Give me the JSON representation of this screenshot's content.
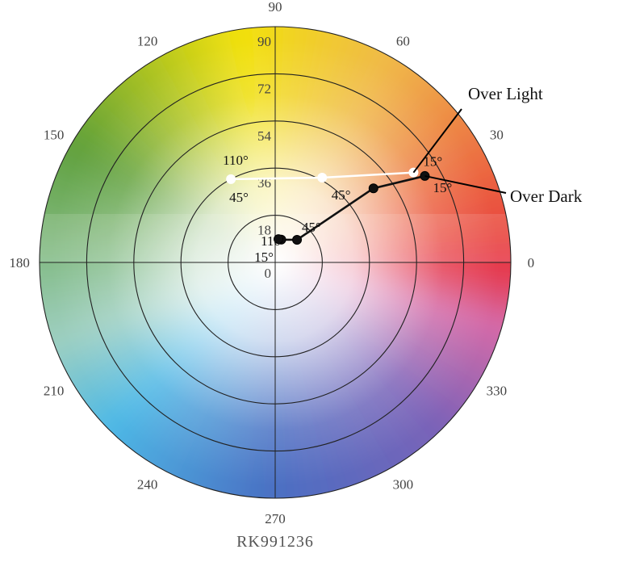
{
  "chart_data": {
    "type": "scatter",
    "coordinate_system": "polar",
    "angle_ticks": [
      "0",
      "30",
      "60",
      "90",
      "120",
      "150",
      "180",
      "210",
      "240",
      "270",
      "300",
      "330"
    ],
    "radial_ticks": [
      "0",
      "18",
      "36",
      "54",
      "72",
      "90"
    ],
    "radial_range": [
      0,
      90
    ],
    "grid": true,
    "background": "color wheel (hue by angle, saturation by radius)",
    "series": [
      {
        "name": "Over Light",
        "color": "#ffffff",
        "points": [
          {
            "angle_deg": 33,
            "radius": 63,
            "label": "15°"
          },
          {
            "angle_deg": 61,
            "radius": 37,
            "label": ""
          },
          {
            "angle_deg": 118,
            "radius": 36,
            "label": "110°"
          }
        ]
      },
      {
        "name": "Over Dark",
        "color": "#111111",
        "points": [
          {
            "angle_deg": 30,
            "radius": 66,
            "label": "15°"
          },
          {
            "angle_deg": 37,
            "radius": 47,
            "label": "45°"
          },
          {
            "angle_deg": 46,
            "radius": 12,
            "label": "45°"
          },
          {
            "angle_deg": 75,
            "radius": 9,
            "label": ""
          },
          {
            "angle_deg": 82,
            "radius": 9,
            "label": "110°"
          }
        ]
      }
    ],
    "extra_labels": [
      {
        "text": "45°",
        "series": "Over Light"
      },
      {
        "text": "15°",
        "series": "Over Dark"
      }
    ],
    "footer_code": "RK991236"
  },
  "colors": {
    "wheel_red": "#e8323c",
    "wheel_yellow": "#f2e20f",
    "wheel_green": "#5fa03a",
    "wheel_cyan": "#4fb9e6",
    "wheel_blue": "#4a6fc3",
    "wheel_magenta": "#d66aa8",
    "grid": "#222222"
  }
}
